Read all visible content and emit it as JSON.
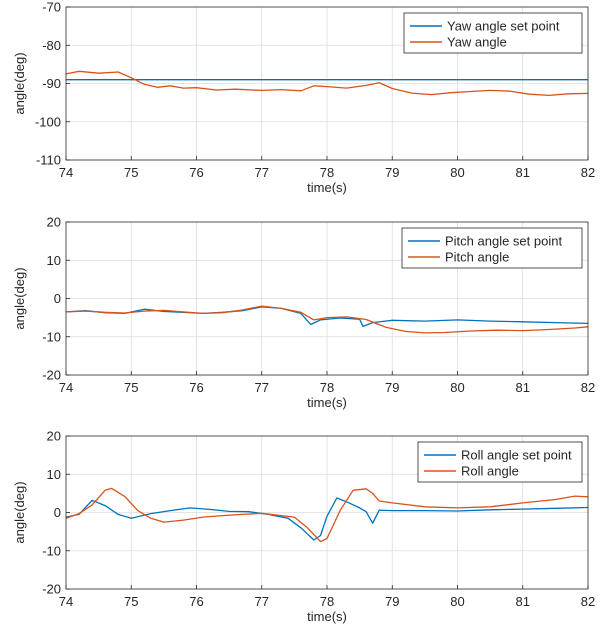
{
  "colors": {
    "setpoint": "#0072BD",
    "actual": "#D95319",
    "grid": "#dcdcdc",
    "axis": "#262626"
  },
  "chart_data": [
    {
      "type": "line",
      "xlabel": "time(s)",
      "ylabel": "angle(deg)",
      "xlim": [
        74,
        82
      ],
      "ylim": [
        -110,
        -70
      ],
      "xticks": [
        74,
        75,
        76,
        77,
        78,
        79,
        80,
        81,
        82
      ],
      "yticks": [
        -110,
        -100,
        -90,
        -80,
        -70
      ],
      "grid": true,
      "legend": "top-right",
      "series": [
        {
          "name": "Yaw angle set point",
          "x": [
            74,
            82
          ],
          "y": [
            -89,
            -89
          ]
        },
        {
          "name": "Yaw angle",
          "x": [
            74,
            74.2,
            74.5,
            74.8,
            75.0,
            75.2,
            75.4,
            75.6,
            75.8,
            76.0,
            76.3,
            76.6,
            77.0,
            77.3,
            77.6,
            77.8,
            78.0,
            78.3,
            78.6,
            78.8,
            79.0,
            79.3,
            79.6,
            79.9,
            80.2,
            80.5,
            80.8,
            81.1,
            81.4,
            81.7,
            82.0
          ],
          "y": [
            -87.5,
            -86.8,
            -87.3,
            -87.0,
            -88.5,
            -90.2,
            -91.0,
            -90.6,
            -91.2,
            -91.1,
            -91.7,
            -91.5,
            -91.8,
            -91.6,
            -91.9,
            -90.6,
            -90.8,
            -91.2,
            -90.5,
            -89.8,
            -91.3,
            -92.5,
            -92.9,
            -92.4,
            -92.1,
            -91.8,
            -92.0,
            -92.8,
            -93.1,
            -92.7,
            -92.6
          ]
        }
      ]
    },
    {
      "type": "line",
      "xlabel": "time(s)",
      "ylabel": "angle(deg)",
      "xlim": [
        74,
        82
      ],
      "ylim": [
        -20,
        20
      ],
      "xticks": [
        74,
        75,
        76,
        77,
        78,
        79,
        80,
        81,
        82
      ],
      "yticks": [
        -20,
        -10,
        0,
        10,
        20
      ],
      "grid": true,
      "legend": "top-right",
      "series": [
        {
          "name": "Pitch angle set point",
          "x": [
            74,
            74.3,
            74.6,
            74.9,
            75.2,
            75.5,
            75.8,
            76.1,
            76.4,
            76.7,
            77.0,
            77.3,
            77.6,
            77.75,
            77.9,
            78.2,
            78.5,
            78.55,
            78.7,
            79.0,
            79.5,
            80.0,
            80.5,
            81.0,
            81.5,
            82.0
          ],
          "y": [
            -3.5,
            -3.2,
            -3.7,
            -3.9,
            -2.8,
            -3.4,
            -3.6,
            -3.9,
            -3.6,
            -3.2,
            -2.2,
            -2.6,
            -3.9,
            -6.8,
            -5.6,
            -5.1,
            -5.4,
            -7.3,
            -6.3,
            -5.7,
            -5.9,
            -5.6,
            -5.9,
            -6.1,
            -6.3,
            -6.5
          ]
        },
        {
          "name": "Pitch angle",
          "x": [
            74,
            74.3,
            74.6,
            74.9,
            75.2,
            75.5,
            75.8,
            76.1,
            76.4,
            76.7,
            77.0,
            77.3,
            77.6,
            77.8,
            78.0,
            78.3,
            78.6,
            78.9,
            79.2,
            79.5,
            79.8,
            80.2,
            80.6,
            81.0,
            81.4,
            81.8,
            82.0
          ],
          "y": [
            -3.5,
            -3.3,
            -3.6,
            -3.8,
            -3.3,
            -3.1,
            -3.5,
            -3.9,
            -3.7,
            -3.0,
            -2.0,
            -2.6,
            -3.6,
            -5.6,
            -5.0,
            -4.8,
            -5.5,
            -7.5,
            -8.6,
            -9.0,
            -8.9,
            -8.5,
            -8.3,
            -8.4,
            -8.1,
            -7.7,
            -7.4
          ]
        }
      ]
    },
    {
      "type": "line",
      "xlabel": "time(s)",
      "ylabel": "angle(deg)",
      "xlim": [
        74,
        82
      ],
      "ylim": [
        -20,
        20
      ],
      "xticks": [
        74,
        75,
        76,
        77,
        78,
        79,
        80,
        81,
        82
      ],
      "yticks": [
        -20,
        -10,
        0,
        10,
        20
      ],
      "grid": true,
      "legend": "top-right",
      "series": [
        {
          "name": "Roll angle set point",
          "x": [
            74,
            74.2,
            74.4,
            74.6,
            74.8,
            75.0,
            75.3,
            75.6,
            75.9,
            76.2,
            76.5,
            76.8,
            77.1,
            77.4,
            77.6,
            77.8,
            77.9,
            78.0,
            78.15,
            78.3,
            78.5,
            78.6,
            78.7,
            78.8,
            79.0,
            79.5,
            80.0,
            80.5,
            81.0,
            81.5,
            82.0
          ],
          "y": [
            -1.2,
            -0.5,
            3.2,
            1.8,
            -0.5,
            -1.5,
            -0.3,
            0.5,
            1.2,
            0.8,
            0.3,
            0.2,
            -0.5,
            -1.5,
            -4.0,
            -7.2,
            -6.0,
            -1.0,
            3.8,
            2.8,
            1.2,
            0.2,
            -2.8,
            0.6,
            0.5,
            0.5,
            0.4,
            0.7,
            0.9,
            1.1,
            1.3
          ]
        },
        {
          "name": "Roll angle",
          "x": [
            74,
            74.2,
            74.4,
            74.6,
            74.7,
            74.9,
            75.1,
            75.3,
            75.5,
            75.8,
            76.1,
            76.4,
            76.7,
            77.0,
            77.3,
            77.5,
            77.7,
            77.9,
            78.0,
            78.2,
            78.4,
            78.6,
            78.7,
            78.8,
            79.0,
            79.5,
            80.0,
            80.5,
            81.0,
            81.5,
            81.8,
            82.0
          ],
          "y": [
            -1.5,
            -0.3,
            2.0,
            5.8,
            6.3,
            4.2,
            0.5,
            -1.5,
            -2.5,
            -2.0,
            -1.2,
            -0.8,
            -0.5,
            -0.2,
            -0.8,
            -1.2,
            -4.0,
            -7.6,
            -6.8,
            0.5,
            5.8,
            6.2,
            5.0,
            3.0,
            2.5,
            1.5,
            1.2,
            1.5,
            2.5,
            3.4,
            4.3,
            4.1
          ]
        }
      ]
    }
  ]
}
